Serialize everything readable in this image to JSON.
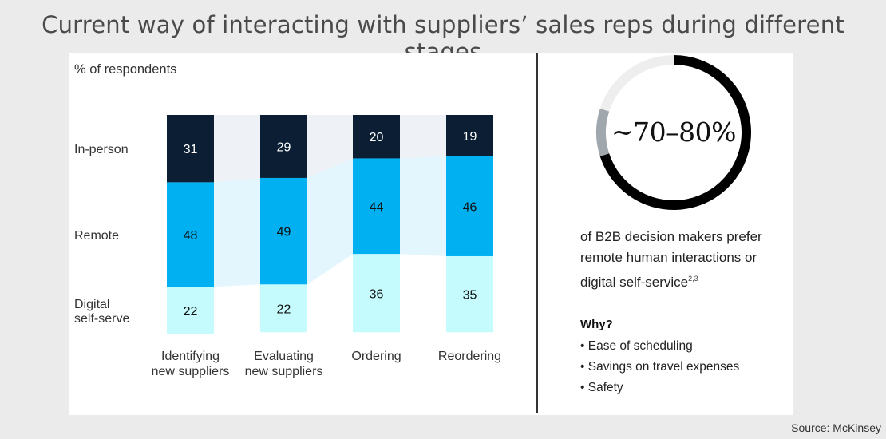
{
  "title": "Current way of interacting with suppliers’ sales reps during different stages",
  "source": "Source: McKinsey",
  "colors": {
    "in_person": "#0b1e33",
    "remote": "#00b0f0",
    "digital": "#c5fbfd",
    "connector": "#eef1f5",
    "connector_remote": "#e3f6fd",
    "ring_dark": "#000000",
    "ring_light": "#eeeeee",
    "ring_mid": "#a0a8ae"
  },
  "chart_data": {
    "type": "bar",
    "stacked": true,
    "unit_label": "% of respondents",
    "categories": [
      [
        "Identifying",
        "new suppliers"
      ],
      [
        "Evaluating",
        "new suppliers"
      ],
      [
        "Ordering"
      ],
      [
        "Reordering"
      ]
    ],
    "series": [
      {
        "name": "In-person",
        "key": "in_person",
        "values": [
          31,
          29,
          20,
          19
        ]
      },
      {
        "name": "Remote",
        "key": "remote",
        "values": [
          48,
          49,
          44,
          46
        ]
      },
      {
        "name": [
          "Digital",
          "self-serve"
        ],
        "key": "digital",
        "values": [
          22,
          22,
          36,
          35
        ]
      }
    ],
    "ylim": [
      0,
      101
    ],
    "grid": false,
    "legend": "left"
  },
  "stat": {
    "value": "~70–80%",
    "range_low": 70,
    "range_high": 80,
    "caption_lines": [
      "of B2B decision makers prefer",
      "remote human interactions or",
      "digital self-service"
    ],
    "footnote": "2,3"
  },
  "why": {
    "title": "Why?",
    "items": [
      "Ease of scheduling",
      "Savings on travel expenses",
      "Safety"
    ]
  }
}
